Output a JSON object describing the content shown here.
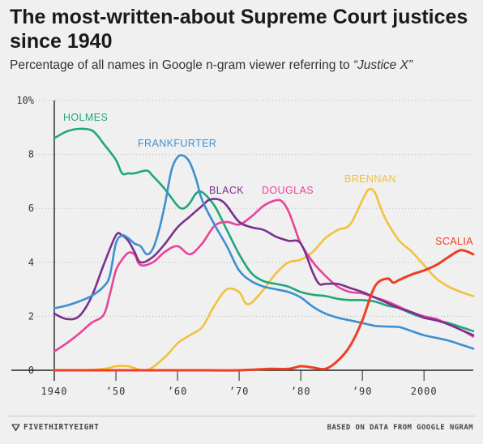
{
  "title": "The most-written-about Supreme Court justices since 1940",
  "subtitle_prefix": "Percentage of all names in Google n-gram viewer referring to ",
  "subtitle_term": "“Justice X”",
  "footer": {
    "brand": "FIVETHIRTYEIGHT",
    "source": "BASED ON DATA FROM GOOGLE NGRAM"
  },
  "chart_data": {
    "type": "line",
    "title": "The most-written-about Supreme Court justices since 1940",
    "subtitle": "Percentage of all names in Google n-gram viewer referring to “Justice X”",
    "xlim": [
      1940,
      2008
    ],
    "ylim": [
      0,
      10
    ],
    "x_ticks": [
      1940,
      1950,
      1960,
      1970,
      1980,
      1990,
      2000
    ],
    "x_tick_labels": [
      "1940",
      "’50",
      "’60",
      "’70",
      "’80",
      "’90",
      "2000"
    ],
    "y_ticks": [
      0,
      2,
      4,
      6,
      8,
      10
    ],
    "y_tick_labels": [
      "0",
      "2",
      "4",
      "6",
      "8",
      "10%"
    ],
    "grid": "horizontal dotted",
    "series": [
      {
        "name": "HOLMES",
        "color": "#1fa77a",
        "x": [
          1940,
          1942,
          1944,
          1946,
          1947,
          1948,
          1950,
          1951,
          1952,
          1953,
          1955,
          1956,
          1958,
          1960,
          1961,
          1962,
          1963,
          1964,
          1966,
          1968,
          1970,
          1972,
          1974,
          1976,
          1978,
          1980,
          1982,
          1984,
          1986,
          1988,
          1990,
          1992,
          1994,
          1996,
          1998,
          2000,
          2002,
          2004,
          2006,
          2008
        ],
        "y": [
          8.6,
          8.85,
          8.95,
          8.9,
          8.7,
          8.4,
          7.8,
          7.3,
          7.3,
          7.3,
          7.4,
          7.2,
          6.7,
          6.1,
          6.0,
          6.2,
          6.55,
          6.6,
          6.1,
          5.2,
          4.3,
          3.6,
          3.3,
          3.2,
          3.1,
          2.9,
          2.8,
          2.75,
          2.65,
          2.6,
          2.6,
          2.55,
          2.4,
          2.3,
          2.1,
          1.95,
          1.85,
          1.75,
          1.6,
          1.45
        ]
      },
      {
        "name": "FRANKFURTER",
        "color": "#3d8fd1",
        "x": [
          1940,
          1942,
          1944,
          1946,
          1948,
          1949,
          1950,
          1951,
          1952,
          1953,
          1954,
          1955,
          1956,
          1957,
          1958,
          1959,
          1960,
          1961,
          1962,
          1963,
          1964,
          1966,
          1968,
          1970,
          1972,
          1974,
          1976,
          1978,
          1980,
          1982,
          1984,
          1986,
          1988,
          1990,
          1992,
          1994,
          1996,
          1998,
          2000,
          2002,
          2004,
          2006,
          2008
        ],
        "y": [
          2.3,
          2.4,
          2.55,
          2.75,
          3.1,
          3.5,
          4.7,
          5.0,
          4.9,
          4.7,
          4.6,
          4.3,
          4.5,
          5.2,
          6.2,
          7.4,
          7.9,
          7.95,
          7.7,
          7.1,
          6.3,
          5.4,
          4.6,
          3.7,
          3.3,
          3.1,
          3.0,
          2.9,
          2.7,
          2.35,
          2.1,
          1.95,
          1.85,
          1.75,
          1.65,
          1.62,
          1.6,
          1.45,
          1.3,
          1.2,
          1.1,
          0.95,
          0.8
        ]
      },
      {
        "name": "BLACK",
        "color": "#7b2f8e",
        "x": [
          1940,
          1942,
          1944,
          1946,
          1948,
          1950,
          1951,
          1952,
          1953,
          1954,
          1956,
          1958,
          1960,
          1962,
          1964,
          1965,
          1966,
          1967,
          1968,
          1970,
          1972,
          1974,
          1976,
          1978,
          1980,
          1982,
          1983,
          1984,
          1986,
          1988,
          1990,
          1992,
          1994,
          1996,
          1998,
          2000,
          2002,
          2004,
          2006,
          2008
        ],
        "y": [
          2.1,
          1.9,
          2.0,
          2.7,
          3.9,
          5.0,
          5.0,
          4.8,
          4.4,
          4.0,
          4.2,
          4.7,
          5.3,
          5.7,
          6.1,
          6.3,
          6.35,
          6.3,
          6.1,
          5.5,
          5.3,
          5.2,
          4.95,
          4.8,
          4.7,
          3.6,
          3.2,
          3.2,
          3.2,
          3.05,
          2.9,
          2.7,
          2.5,
          2.3,
          2.15,
          1.95,
          1.85,
          1.7,
          1.5,
          1.3
        ]
      },
      {
        "name": "DOUGLAS",
        "color": "#e8439c",
        "x": [
          1940,
          1942,
          1944,
          1946,
          1948,
          1949,
          1950,
          1951,
          1952,
          1953,
          1954,
          1956,
          1958,
          1960,
          1962,
          1964,
          1966,
          1968,
          1970,
          1972,
          1974,
          1976,
          1977,
          1978,
          1979,
          1980,
          1982,
          1984,
          1986,
          1988,
          1990,
          1992,
          1994,
          1996,
          1998,
          2000,
          2002,
          2004,
          2006,
          2008
        ],
        "y": [
          0.7,
          1.0,
          1.35,
          1.75,
          2.05,
          2.8,
          3.7,
          4.1,
          4.35,
          4.3,
          3.9,
          4.0,
          4.4,
          4.6,
          4.3,
          4.7,
          5.35,
          5.5,
          5.4,
          5.7,
          6.1,
          6.3,
          6.25,
          5.9,
          5.3,
          4.7,
          4.0,
          3.5,
          3.1,
          2.9,
          2.85,
          2.7,
          2.55,
          2.35,
          2.15,
          2.0,
          1.9,
          1.7,
          1.5,
          1.25
        ]
      },
      {
        "name": "BRENNAN",
        "color": "#f2c13d",
        "x": [
          1940,
          1944,
          1948,
          1950,
          1952,
          1955,
          1958,
          1960,
          1962,
          1964,
          1966,
          1968,
          1970,
          1971,
          1972,
          1974,
          1976,
          1978,
          1980,
          1982,
          1984,
          1986,
          1988,
          1990,
          1991,
          1992,
          1993,
          1994,
          1996,
          1998,
          2000,
          2002,
          2004,
          2006,
          2008
        ],
        "y": [
          0,
          0,
          0.05,
          0.15,
          0.15,
          0,
          0.5,
          1.0,
          1.3,
          1.6,
          2.4,
          3.0,
          2.9,
          2.5,
          2.5,
          3.0,
          3.6,
          4.0,
          4.1,
          4.4,
          4.9,
          5.2,
          5.4,
          6.3,
          6.7,
          6.6,
          6.0,
          5.5,
          4.8,
          4.4,
          3.9,
          3.4,
          3.1,
          2.9,
          2.75
        ]
      },
      {
        "name": "SCALIA",
        "color": "#ef3e24",
        "x": [
          1940,
          1950,
          1960,
          1965,
          1970,
          1975,
          1978,
          1980,
          1982,
          1984,
          1986,
          1988,
          1990,
          1992,
          1994,
          1995,
          1996,
          1998,
          2000,
          2002,
          2004,
          2006,
          2008
        ],
        "y": [
          0,
          0,
          0,
          0,
          0,
          0.05,
          0.05,
          0.15,
          0.1,
          0.05,
          0.35,
          0.9,
          1.85,
          3.1,
          3.4,
          3.25,
          3.35,
          3.55,
          3.7,
          3.9,
          4.2,
          4.45,
          4.3
        ]
      }
    ]
  }
}
